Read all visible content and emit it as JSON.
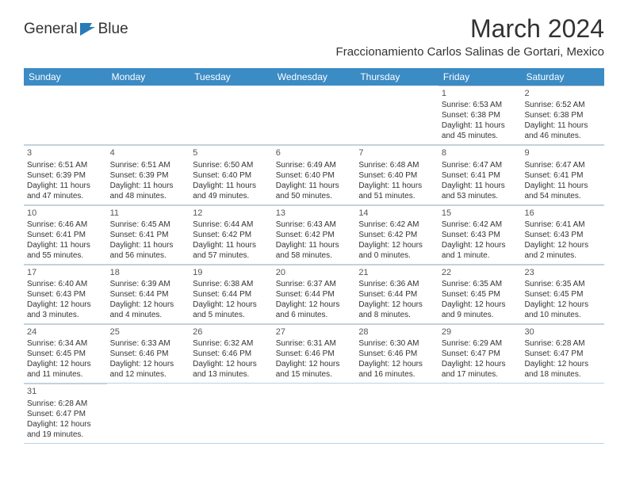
{
  "logo": {
    "text": "General",
    "text2": "Blue"
  },
  "title": "March 2024",
  "location": "Fraccionamiento Carlos Salinas de Gortari, Mexico",
  "colors": {
    "header_bg": "#3b8bc4",
    "header_text": "#ffffff",
    "border": "#b8d4e8",
    "cell_border": "#d0d0d0",
    "text": "#333333",
    "logo_blue": "#2a7ab8"
  },
  "day_names": [
    "Sunday",
    "Monday",
    "Tuesday",
    "Wednesday",
    "Thursday",
    "Friday",
    "Saturday"
  ],
  "weeks": [
    [
      null,
      null,
      null,
      null,
      null,
      {
        "n": "1",
        "sr": "6:53 AM",
        "ss": "6:38 PM",
        "dl": "11 hours and 45 minutes."
      },
      {
        "n": "2",
        "sr": "6:52 AM",
        "ss": "6:38 PM",
        "dl": "11 hours and 46 minutes."
      }
    ],
    [
      {
        "n": "3",
        "sr": "6:51 AM",
        "ss": "6:39 PM",
        "dl": "11 hours and 47 minutes."
      },
      {
        "n": "4",
        "sr": "6:51 AM",
        "ss": "6:39 PM",
        "dl": "11 hours and 48 minutes."
      },
      {
        "n": "5",
        "sr": "6:50 AM",
        "ss": "6:40 PM",
        "dl": "11 hours and 49 minutes."
      },
      {
        "n": "6",
        "sr": "6:49 AM",
        "ss": "6:40 PM",
        "dl": "11 hours and 50 minutes."
      },
      {
        "n": "7",
        "sr": "6:48 AM",
        "ss": "6:40 PM",
        "dl": "11 hours and 51 minutes."
      },
      {
        "n": "8",
        "sr": "6:47 AM",
        "ss": "6:41 PM",
        "dl": "11 hours and 53 minutes."
      },
      {
        "n": "9",
        "sr": "6:47 AM",
        "ss": "6:41 PM",
        "dl": "11 hours and 54 minutes."
      }
    ],
    [
      {
        "n": "10",
        "sr": "6:46 AM",
        "ss": "6:41 PM",
        "dl": "11 hours and 55 minutes."
      },
      {
        "n": "11",
        "sr": "6:45 AM",
        "ss": "6:41 PM",
        "dl": "11 hours and 56 minutes."
      },
      {
        "n": "12",
        "sr": "6:44 AM",
        "ss": "6:42 PM",
        "dl": "11 hours and 57 minutes."
      },
      {
        "n": "13",
        "sr": "6:43 AM",
        "ss": "6:42 PM",
        "dl": "11 hours and 58 minutes."
      },
      {
        "n": "14",
        "sr": "6:42 AM",
        "ss": "6:42 PM",
        "dl": "12 hours and 0 minutes."
      },
      {
        "n": "15",
        "sr": "6:42 AM",
        "ss": "6:43 PM",
        "dl": "12 hours and 1 minute."
      },
      {
        "n": "16",
        "sr": "6:41 AM",
        "ss": "6:43 PM",
        "dl": "12 hours and 2 minutes."
      }
    ],
    [
      {
        "n": "17",
        "sr": "6:40 AM",
        "ss": "6:43 PM",
        "dl": "12 hours and 3 minutes."
      },
      {
        "n": "18",
        "sr": "6:39 AM",
        "ss": "6:44 PM",
        "dl": "12 hours and 4 minutes."
      },
      {
        "n": "19",
        "sr": "6:38 AM",
        "ss": "6:44 PM",
        "dl": "12 hours and 5 minutes."
      },
      {
        "n": "20",
        "sr": "6:37 AM",
        "ss": "6:44 PM",
        "dl": "12 hours and 6 minutes."
      },
      {
        "n": "21",
        "sr": "6:36 AM",
        "ss": "6:44 PM",
        "dl": "12 hours and 8 minutes."
      },
      {
        "n": "22",
        "sr": "6:35 AM",
        "ss": "6:45 PM",
        "dl": "12 hours and 9 minutes."
      },
      {
        "n": "23",
        "sr": "6:35 AM",
        "ss": "6:45 PM",
        "dl": "12 hours and 10 minutes."
      }
    ],
    [
      {
        "n": "24",
        "sr": "6:34 AM",
        "ss": "6:45 PM",
        "dl": "12 hours and 11 minutes."
      },
      {
        "n": "25",
        "sr": "6:33 AM",
        "ss": "6:46 PM",
        "dl": "12 hours and 12 minutes."
      },
      {
        "n": "26",
        "sr": "6:32 AM",
        "ss": "6:46 PM",
        "dl": "12 hours and 13 minutes."
      },
      {
        "n": "27",
        "sr": "6:31 AM",
        "ss": "6:46 PM",
        "dl": "12 hours and 15 minutes."
      },
      {
        "n": "28",
        "sr": "6:30 AM",
        "ss": "6:46 PM",
        "dl": "12 hours and 16 minutes."
      },
      {
        "n": "29",
        "sr": "6:29 AM",
        "ss": "6:47 PM",
        "dl": "12 hours and 17 minutes."
      },
      {
        "n": "30",
        "sr": "6:28 AM",
        "ss": "6:47 PM",
        "dl": "12 hours and 18 minutes."
      }
    ],
    [
      {
        "n": "31",
        "sr": "6:28 AM",
        "ss": "6:47 PM",
        "dl": "12 hours and 19 minutes."
      },
      null,
      null,
      null,
      null,
      null,
      null
    ]
  ],
  "labels": {
    "sunrise": "Sunrise:",
    "sunset": "Sunset:",
    "daylight": "Daylight:"
  }
}
